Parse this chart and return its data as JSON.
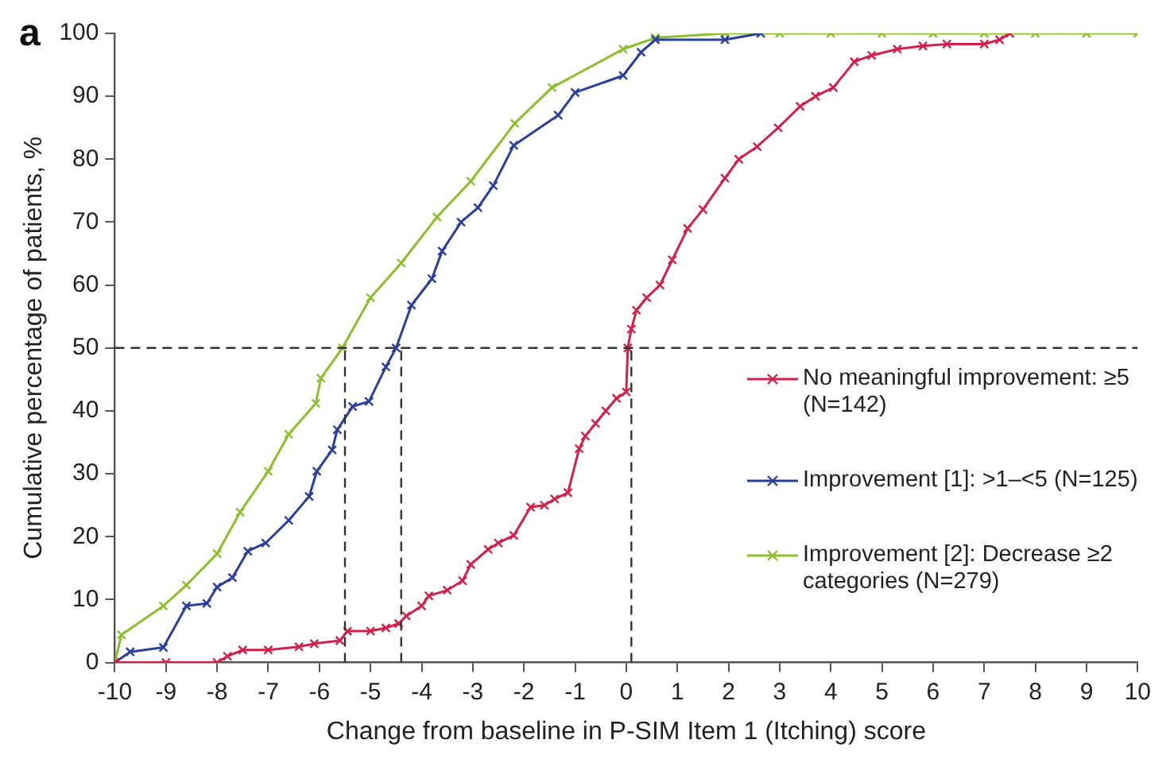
{
  "chart_data": {
    "type": "line",
    "xlabel": "Change from baseline in P-SIM Item 1 (Itching) score",
    "ylabel": "Cumulative percentage of patients, %",
    "annotations": [
      "a"
    ],
    "xlim": [
      -10,
      10
    ],
    "xticks": [
      -10,
      -9,
      -8,
      -7,
      -6,
      -5,
      -4,
      -3,
      -2,
      -1,
      0,
      1,
      2,
      3,
      4,
      5,
      6,
      7,
      8,
      9,
      10
    ],
    "ylim": [
      0,
      100
    ],
    "yticks": [
      0,
      10,
      20,
      30,
      40,
      50,
      60,
      70,
      80,
      90,
      100
    ],
    "grid": false,
    "legend": "right",
    "marker": "cross",
    "line_style": "solid",
    "ref_lines": [
      {
        "axis": "y",
        "value": 50,
        "line_style": "dashed"
      },
      {
        "axis": "x",
        "value": -5.5,
        "line_style": "dashed"
      },
      {
        "axis": "x",
        "value": -4.4,
        "line_style": "dashed"
      },
      {
        "axis": "x",
        "value": 0.1,
        "line_style": "dashed"
      }
    ],
    "series": [
      {
        "name": "No meaningful improvement: ≥5 (N=142)",
        "color": "#d2204a",
        "x": [
          -10,
          -9,
          -8,
          -7.8,
          -7.5,
          -7,
          -6.4,
          -6.1,
          -5.6,
          -5.45,
          -5,
          -4.7,
          -4.45,
          -4.3,
          -4,
          -3.86,
          -3.5,
          -3.2,
          -3.04,
          -2.7,
          -2.5,
          -2.2,
          -1.87,
          -1.6,
          -1.4,
          -1.14,
          -0.92,
          -0.8,
          -0.6,
          -0.4,
          -0.19,
          0,
          0.03,
          0.1,
          0.2,
          0.4,
          0.66,
          0.9,
          1.2,
          1.5,
          1.93,
          2.2,
          2.56,
          2.97,
          3.4,
          3.7,
          4.05,
          4.46,
          4.8,
          5.3,
          5.8,
          6.27,
          7,
          7.3,
          7.5
        ],
        "values": [
          0,
          0,
          0,
          1,
          2,
          2,
          2.5,
          3,
          3.5,
          5,
          5,
          5.5,
          6.2,
          7.4,
          9,
          10.6,
          11.5,
          13,
          15.6,
          18,
          19,
          20.2,
          24.7,
          25,
          26,
          27,
          34,
          36,
          38,
          40,
          42,
          43,
          50,
          53,
          56,
          58,
          60,
          64,
          69,
          72,
          77,
          80,
          82,
          85,
          88.4,
          90,
          91.4,
          95.5,
          96.5,
          97.5,
          98,
          98.3,
          98.3,
          99,
          100
        ]
      },
      {
        "name": "Improvement [1]: >1–<5 (N=125)",
        "color": "#2a3f9c",
        "x": [
          -10,
          -9.7,
          -9.05,
          -8.6,
          -8.2,
          -8,
          -7.7,
          -7.4,
          -7.05,
          -6.6,
          -6.2,
          -6.05,
          -5.75,
          -5.65,
          -5.35,
          -5.03,
          -4.7,
          -4.5,
          -4.2,
          -3.8,
          -3.6,
          -3.23,
          -2.9,
          -2.6,
          -2.2,
          -1.33,
          -1,
          -0.06,
          0.29,
          0.57,
          1.93,
          2.63
        ],
        "values": [
          0,
          1.7,
          2.4,
          9,
          9.4,
          12,
          13.5,
          17.7,
          19,
          22.6,
          26.4,
          30.4,
          33.8,
          37,
          40.7,
          41.5,
          47,
          50,
          56.8,
          61,
          65.4,
          70,
          72.3,
          75.8,
          82.2,
          87,
          90.6,
          93.3,
          97,
          99,
          99,
          100
        ]
      },
      {
        "name": "Improvement [2]: Decrease ≥2 categories (N=279)",
        "color": "#8cbf2c",
        "x": [
          -10,
          -9.87,
          -9.05,
          -8.6,
          -8,
          -7.55,
          -7,
          -6.6,
          -6.07,
          -5.97,
          -5.55,
          -5,
          -4.4,
          -3.7,
          -3.04,
          -2.18,
          -1.45,
          -0.06,
          0.57,
          1.93,
          3,
          4,
          5,
          6,
          7,
          8,
          9,
          10
        ],
        "values": [
          0,
          4.4,
          9,
          12.3,
          17.3,
          23.9,
          30.4,
          36.3,
          41.2,
          45.2,
          50,
          58,
          63.5,
          70.8,
          76.5,
          85.7,
          91.4,
          97.5,
          99.3,
          100,
          100,
          100,
          100,
          100,
          100,
          100,
          100,
          100
        ]
      }
    ]
  }
}
